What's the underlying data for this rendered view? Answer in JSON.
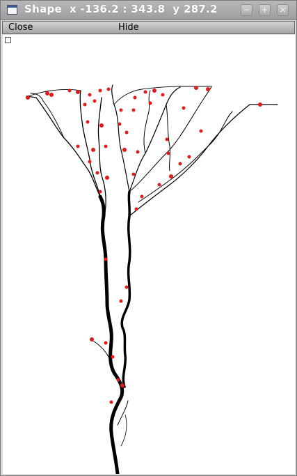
{
  "window": {
    "title": "Shape  x -136.2 : 343.8  y 287.2",
    "icon": "window-icon",
    "controls": {
      "minimize": "−",
      "maximize": "+",
      "close": "×"
    }
  },
  "menu": {
    "close_label": "Close",
    "hide_label": "Hide"
  },
  "drawing": {
    "description_icon": "neuron-morphology",
    "stroke_color": "#000000",
    "marker_color": "#e01b1b"
  }
}
